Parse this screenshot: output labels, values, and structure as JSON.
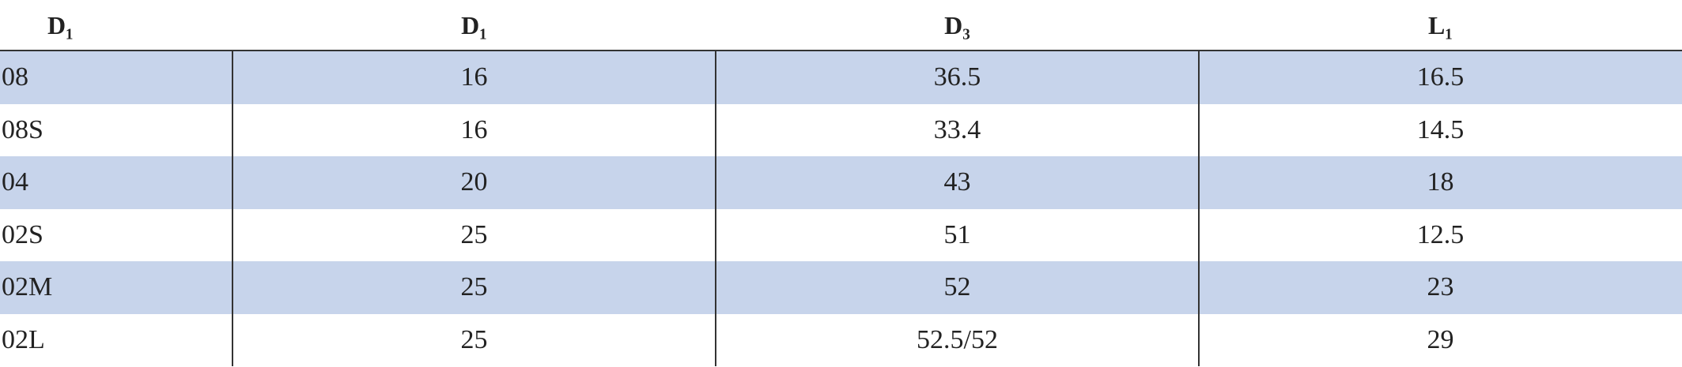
{
  "table": {
    "header": [
      "D₁",
      "D₁",
      "D₃",
      "L₁"
    ],
    "rows": [
      [
        "08",
        "16",
        "36.5",
        "16.5"
      ],
      [
        "08S",
        "16",
        "33.4",
        "14.5"
      ],
      [
        "04",
        "20",
        "43",
        "18"
      ],
      [
        "02S",
        "25",
        "51",
        "12.5"
      ],
      [
        "02M",
        "25",
        "52",
        "23"
      ],
      [
        "02L",
        "25",
        "52.5/52",
        "29"
      ]
    ]
  }
}
